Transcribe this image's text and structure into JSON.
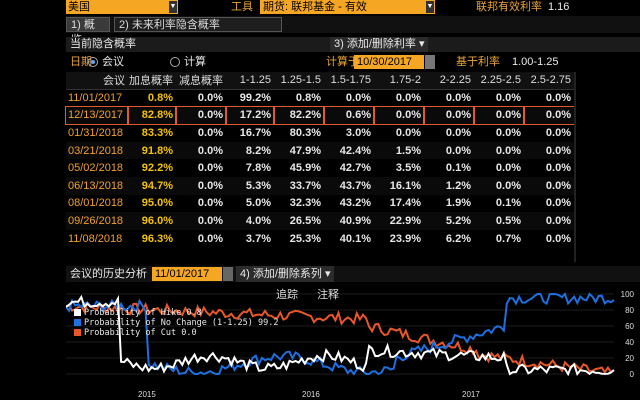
{
  "header": {
    "country": "美国",
    "tool_label": "工具",
    "source": "期货: 联邦基金 - 有效",
    "rate_label": "联邦有效利率",
    "rate_value": "1.16"
  },
  "tabs": [
    {
      "label": "1) 概览"
    },
    {
      "label": "2) 未来利率隐含概率"
    }
  ],
  "section": {
    "title": "当前隐含概率",
    "add_remove": "3) 添加/删除利率 ▾"
  },
  "controls": {
    "date_label": "日期",
    "opt_meeting": "会议",
    "opt_calc": "计算",
    "calc_for_label": "计算于",
    "calc_date": "10/30/2017",
    "base_rate_label": "基于利率",
    "base_rate_value": "1.00-1.25"
  },
  "table": {
    "columns": [
      "会议",
      "加息概率",
      "减息概率",
      "1-1.25",
      "1.25-1.5",
      "1.5-1.75",
      "1.75-2",
      "2-2.25",
      "2.25-2.5",
      "2.5-2.75"
    ],
    "rows": [
      [
        "11/01/2017",
        "0.8%",
        "0.0%",
        "99.2%",
        "0.8%",
        "0.0%",
        "0.0%",
        "0.0%",
        "0.0%",
        "0.0%"
      ],
      [
        "12/13/2017",
        "82.8%",
        "0.0%",
        "17.2%",
        "82.2%",
        "0.6%",
        "0.0%",
        "0.0%",
        "0.0%",
        "0.0%"
      ],
      [
        "01/31/2018",
        "83.3%",
        "0.0%",
        "16.7%",
        "80.3%",
        "3.0%",
        "0.0%",
        "0.0%",
        "0.0%",
        "0.0%"
      ],
      [
        "03/21/2018",
        "91.8%",
        "0.0%",
        "8.2%",
        "47.9%",
        "42.4%",
        "1.5%",
        "0.0%",
        "0.0%",
        "0.0%"
      ],
      [
        "05/02/2018",
        "92.2%",
        "0.0%",
        "7.8%",
        "45.9%",
        "42.7%",
        "3.5%",
        "0.1%",
        "0.0%",
        "0.0%"
      ],
      [
        "06/13/2018",
        "94.7%",
        "0.0%",
        "5.3%",
        "33.7%",
        "43.7%",
        "16.1%",
        "1.2%",
        "0.0%",
        "0.0%"
      ],
      [
        "08/01/2018",
        "95.0%",
        "0.0%",
        "5.0%",
        "32.3%",
        "43.2%",
        "17.4%",
        "1.9%",
        "0.1%",
        "0.0%"
      ],
      [
        "09/26/2018",
        "96.0%",
        "0.0%",
        "4.0%",
        "26.5%",
        "40.9%",
        "22.9%",
        "5.2%",
        "0.5%",
        "0.0%"
      ],
      [
        "11/08/2018",
        "96.3%",
        "0.0%",
        "3.7%",
        "25.3%",
        "40.1%",
        "23.9%",
        "6.2%",
        "0.7%",
        "0.0%"
      ]
    ],
    "selected_row": 1
  },
  "history": {
    "title": "会议的历史分析",
    "date": "11/01/2017",
    "add_series": "4) 添加/删除系列 ▾"
  },
  "chart_tabs": [
    "追踪",
    "注释"
  ],
  "chart_data": {
    "type": "line",
    "series": [
      {
        "name": "Probability of Hike",
        "color": "#ffffff",
        "last": "0.8"
      },
      {
        "name": "Probability of No Change (1-1.25)",
        "color": "#1e6fe0",
        "last": "99.2"
      },
      {
        "name": "Probability of Cut",
        "color": "#e8572a",
        "last": "0.0"
      }
    ],
    "y_ticks": [
      "100",
      "80",
      "60",
      "40",
      "20",
      "0"
    ],
    "x_labels": [
      "2015",
      "2016",
      "2017"
    ],
    "ylim": [
      0,
      100
    ]
  }
}
